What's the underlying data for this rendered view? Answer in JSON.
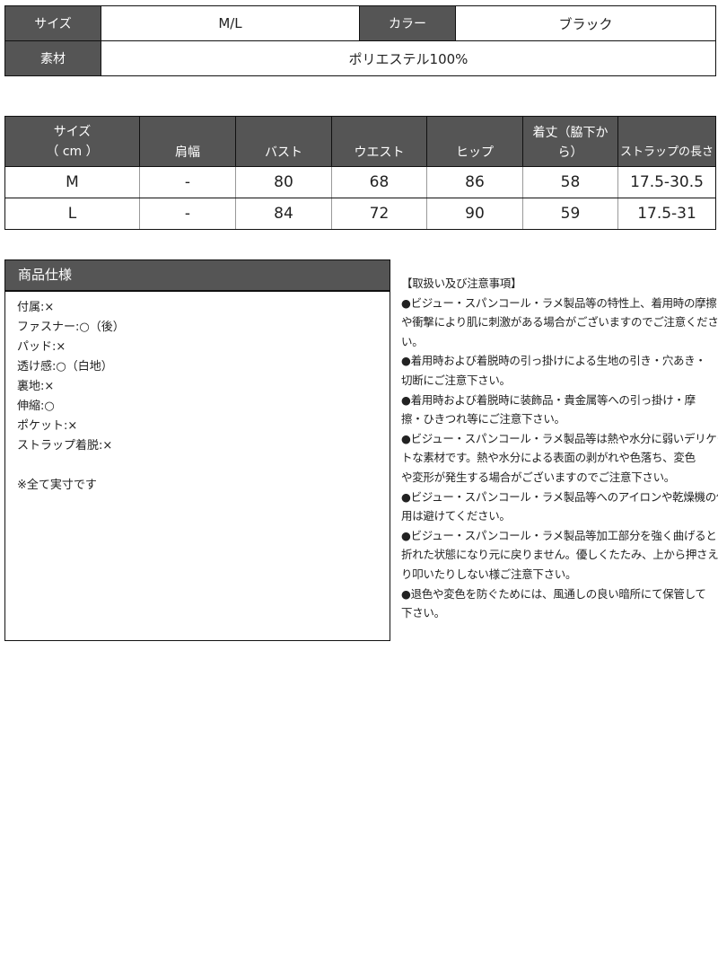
{
  "basic": {
    "size_label": "サイズ",
    "size_value": "M/L",
    "color_label": "カラー",
    "color_value": "ブラック",
    "material_label": "素材",
    "material_value": "ポリエステル100%"
  },
  "sizes": {
    "headers": [
      "サイズ\n（ cm ）",
      "肩幅",
      "バスト",
      "ウエスト",
      "ヒップ",
      "着丈（脇下か\nら）",
      "ストラップの長さ"
    ],
    "rows": [
      [
        "M",
        "-",
        "80",
        "68",
        "86",
        "58",
        "17.5-30.5"
      ],
      [
        "L",
        "-",
        "84",
        "72",
        "90",
        "59",
        "17.5-31"
      ]
    ]
  },
  "spec": {
    "title": "商品仕様",
    "lines": [
      "付属:×",
      "ファスナー:○（後）",
      "パッド:×",
      "透け感:○（白地）",
      "裏地:×",
      "伸縮:○",
      "ポケット:×",
      "ストラップ着脱:×",
      "",
      "※全て実寸です"
    ]
  },
  "notes": {
    "lines": [
      "【取扱い及び注意事項】",
      "●ビジュー・スパンコール・ラメ製品等の特性上、着用時の摩擦",
      "や衝撃により肌に刺激がある場合がございますのでご注意くださ",
      "い。",
      "●着用時および着脱時の引っ掛けによる生地の引き・穴あき・",
      "切断にご注意下さい。",
      "●着用時および着脱時に装飾品・貴金属等への引っ掛け・摩",
      "擦・ひきつれ等にご注意下さい。",
      "●ビジュー・スパンコール・ラメ製品等は熱や水分に弱いデリケー",
      "トな素材です。熱や水分による表面の剥がれや色落ち、変色",
      "や変形が発生する場合がございますのでご注意下さい。",
      "●ビジュー・スパンコール・ラメ製品等へのアイロンや乾燥機の使",
      "用は避けてください。",
      "●ビジュー・スパンコール・ラメ製品等加工部分を強く曲げると",
      "折れた状態になり元に戻りません。優しくたたみ、上から押さえた",
      "り叩いたりしない様ご注意下さい。",
      "●退色や変色を防ぐためには、風通しの良い暗所にて保管して",
      "下さい。"
    ]
  }
}
